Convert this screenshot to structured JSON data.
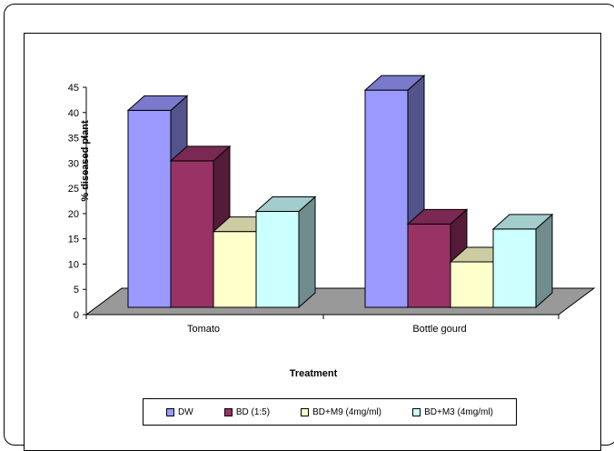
{
  "chart_data": {
    "type": "bar",
    "title": "",
    "xlabel": "Treatment",
    "ylabel": "% diseased  plant",
    "ylim": [
      0,
      45
    ],
    "yticks": [
      "0",
      "5",
      "10",
      "15",
      "20",
      "25",
      "30",
      "35",
      "40",
      "45"
    ],
    "categories": [
      "Tomato",
      "Bottle gourd"
    ],
    "series": [
      {
        "name": "DW",
        "values": [
          39,
          43
        ],
        "color": "#9999FF"
      },
      {
        "name": "BD (1:5)",
        "values": [
          29,
          16.5
        ],
        "color": "#993366"
      },
      {
        "name": "BD+M9 (4mg/ml)",
        "values": [
          15,
          9
        ],
        "color": "#FFFFCC"
      },
      {
        "name": "BD+M3 (4mg/ml)",
        "values": [
          19,
          15.5
        ],
        "color": "#CCFFFF"
      }
    ],
    "style": "3d-clustered",
    "floor_color": "#999999",
    "legend_position": "bottom",
    "grid": false
  }
}
